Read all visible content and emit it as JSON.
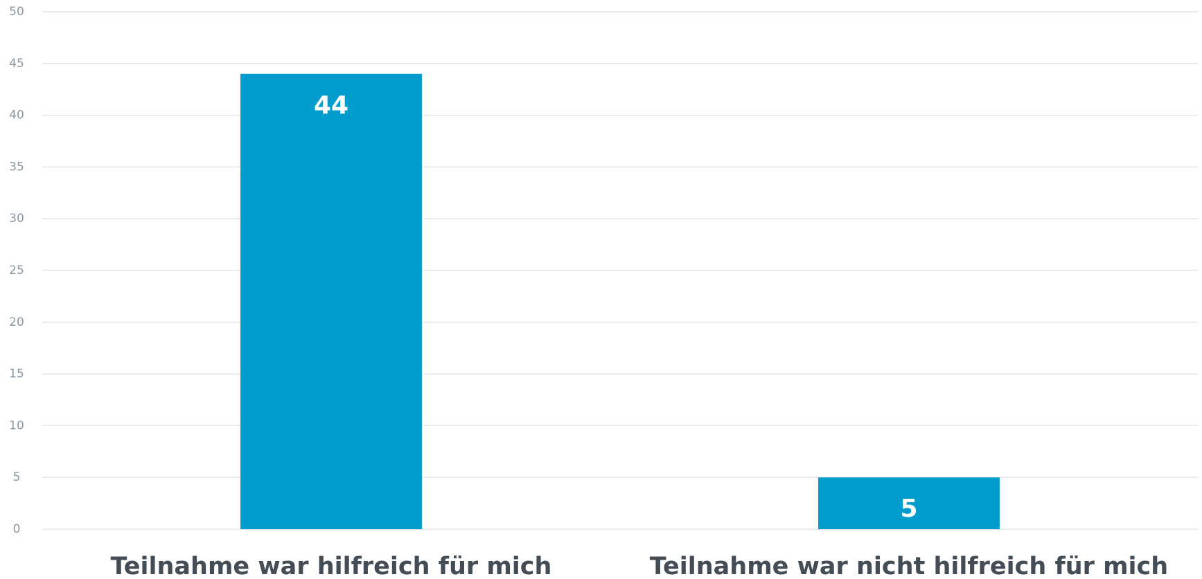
{
  "chart_data": {
    "type": "bar",
    "categories": [
      "Teilnahme war hilfreich für mich",
      "Teilnahme war nicht hilfreich für mich"
    ],
    "values": [
      44,
      5
    ],
    "color": "#009dcc",
    "ylim": [
      0,
      50
    ],
    "yticks": [
      0,
      5,
      10,
      15,
      20,
      25,
      30,
      35,
      40,
      45,
      50
    ],
    "grid": true
  }
}
